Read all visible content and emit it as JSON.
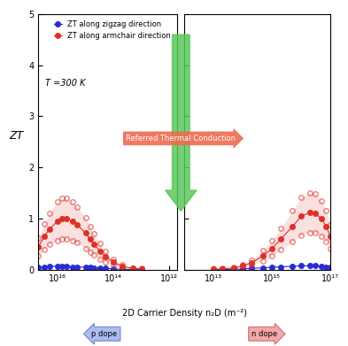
{
  "chart_data": [
    {
      "type": "scatter",
      "ylabel": "ZT",
      "xlabel": "2D Carrier Density n₂D (m⁻²)",
      "annotations": [
        "T =300 K",
        "Referred Thermal Conduction",
        "p dope"
      ],
      "log": "x",
      "legend": "upper right",
      "tick_labels": true,
      "xlim": [
        5e+16,
        500000000000.0
      ],
      "xticks": [
        {
          "value": 1e+16,
          "label": "10¹⁶"
        },
        {
          "value": 100000000000000.0,
          "label": "10¹⁴"
        },
        {
          "value": 1000000000000.0,
          "label": "10¹²"
        }
      ],
      "ylim": [
        0,
        5
      ],
      "yticks": [
        0,
        1,
        2,
        3,
        4,
        5
      ],
      "x": [
        5e+16,
        3e+16,
        2e+16,
        1e+16,
        7000000000000000.0,
        5000000000000000.0,
        3000000000000000.0,
        2000000000000000.0,
        1000000000000000.0,
        700000000000000.0,
        500000000000000.0,
        300000000000000.0,
        200000000000000.0,
        100000000000000.0,
        50000000000000.0,
        20000000000000.0,
        10000000000000.0
      ],
      "series": [
        {
          "name": "ZT along zigzag direction",
          "color": "#2b2bd6",
          "marker": "circle",
          "values": [
            0.05,
            0.06,
            0.07,
            0.07,
            0.07,
            0.07,
            0.06,
            0.06,
            0.05,
            0.05,
            0.04,
            0.03,
            0.03,
            0.02,
            0.01,
            0.01,
            0.0
          ]
        },
        {
          "name": "ZT along armchair direction",
          "color": "#e0302a",
          "marker": "circle",
          "values": [
            0.45,
            0.65,
            0.8,
            0.95,
            1.0,
            1.0,
            0.95,
            0.88,
            0.72,
            0.6,
            0.5,
            0.36,
            0.26,
            0.15,
            0.07,
            0.03,
            0.02
          ],
          "error": [
            0.18,
            0.25,
            0.3,
            0.38,
            0.4,
            0.4,
            0.38,
            0.35,
            0.3,
            0.25,
            0.2,
            0.15,
            0.1,
            0.06,
            0.03,
            0.01,
            0.01
          ]
        }
      ]
    },
    {
      "type": "scatter",
      "annotations": [
        "n dope"
      ],
      "log": "x",
      "tick_labels": "x",
      "xlim": [
        1000000000000.0,
        1e+17
      ],
      "xticks": [
        {
          "value": 10000000000000.0,
          "label": "10¹³"
        },
        {
          "value": 1000000000000000.0,
          "label": "10¹⁵"
        },
        {
          "value": 1e+17,
          "label": "10¹⁷"
        }
      ],
      "ylim": [
        0,
        5
      ],
      "yticks": [
        0,
        1,
        2,
        3,
        4,
        5
      ],
      "x": [
        10000000000000.0,
        20000000000000.0,
        50000000000000.0,
        100000000000000.0,
        200000000000000.0,
        500000000000000.0,
        1000000000000000.0,
        2000000000000000.0,
        5000000000000000.0,
        1e+16,
        2e+16,
        3e+16,
        5e+16,
        7e+16,
        1e+17
      ],
      "series": [
        {
          "name": "ZT along zigzag direction",
          "color": "#2b2bd6",
          "marker": "circle",
          "values": [
            0.0,
            0.01,
            0.01,
            0.02,
            0.03,
            0.04,
            0.05,
            0.06,
            0.07,
            0.08,
            0.08,
            0.08,
            0.07,
            0.06,
            0.05
          ]
        },
        {
          "name": "ZT along armchair direction",
          "color": "#e0302a",
          "marker": "circle",
          "values": [
            0.01,
            0.02,
            0.04,
            0.08,
            0.14,
            0.28,
            0.42,
            0.6,
            0.85,
            1.05,
            1.12,
            1.1,
            1.0,
            0.85,
            0.65
          ],
          "error": [
            0.0,
            0.01,
            0.01,
            0.03,
            0.05,
            0.1,
            0.15,
            0.21,
            0.3,
            0.37,
            0.39,
            0.38,
            0.35,
            0.3,
            0.23
          ]
        }
      ]
    }
  ]
}
